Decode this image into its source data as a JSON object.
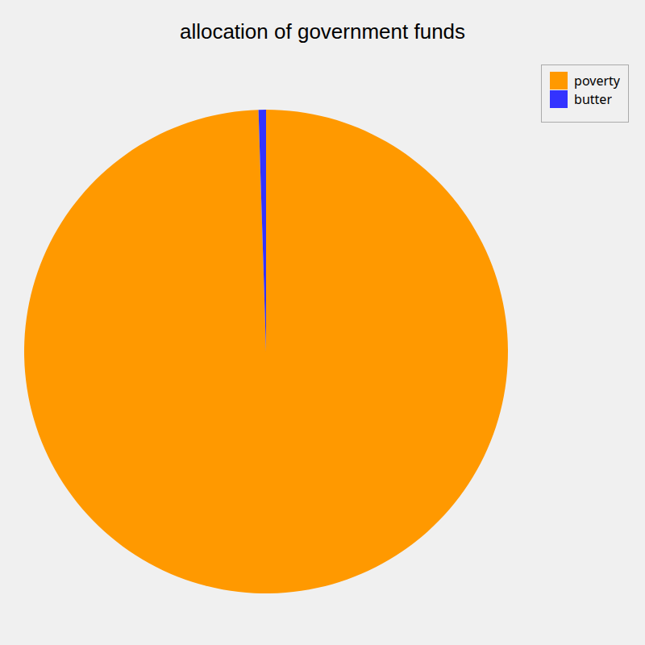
{
  "chart_data": {
    "type": "pie",
    "title": "allocation of government funds",
    "categories": [
      "poverty",
      "butter"
    ],
    "values": [
      99.5,
      0.5
    ],
    "colors": [
      "#FF9900",
      "#3333FF"
    ],
    "legend": "upper right"
  }
}
